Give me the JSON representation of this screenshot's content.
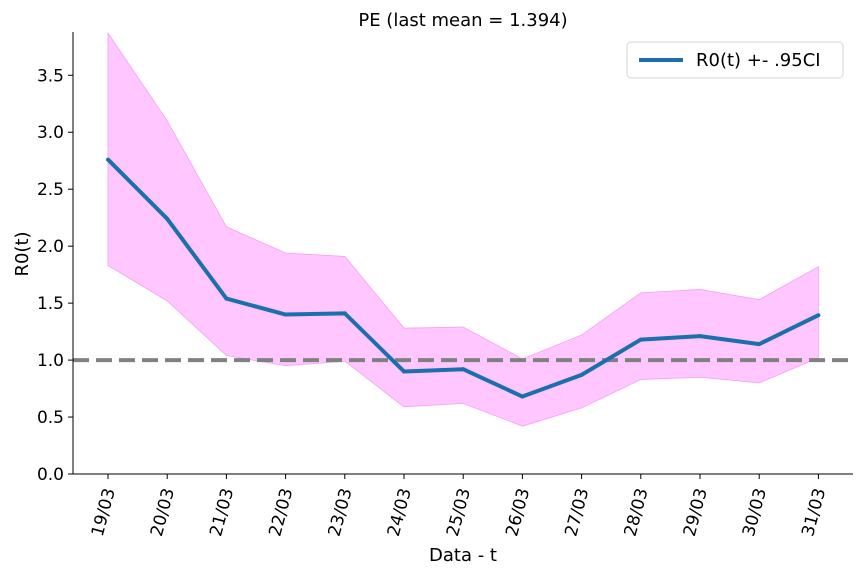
{
  "chart_data": {
    "type": "line",
    "title": "PE (last mean = 1.394)",
    "xlabel": "Data - t",
    "ylabel": "R0(t)",
    "x": [
      "19/03",
      "20/03",
      "21/03",
      "22/03",
      "23/03",
      "24/03",
      "25/03",
      "26/03",
      "27/03",
      "28/03",
      "29/03",
      "30/03",
      "31/03"
    ],
    "series": [
      {
        "name": "R0(t) +- .95CI",
        "values": [
          2.76,
          2.24,
          1.54,
          1.4,
          1.41,
          0.9,
          0.92,
          0.68,
          0.87,
          1.18,
          1.21,
          1.14,
          1.394
        ],
        "lower": [
          1.83,
          1.52,
          1.04,
          0.95,
          0.99,
          0.59,
          0.62,
          0.42,
          0.58,
          0.83,
          0.85,
          0.8,
          1.02
        ],
        "upper": [
          3.87,
          3.1,
          2.17,
          1.94,
          1.91,
          1.28,
          1.29,
          1.01,
          1.22,
          1.59,
          1.62,
          1.53,
          1.82
        ],
        "color": "#1a6faf",
        "band_color": "#ffc6ff"
      }
    ],
    "reference_line": {
      "y": 1.0,
      "color": "#808080",
      "style": "dashed"
    },
    "yticks": [
      "0.0",
      "0.5",
      "1.0",
      "1.5",
      "2.0",
      "2.5",
      "3.0",
      "3.5"
    ],
    "ylim": [
      0,
      3.88
    ],
    "grid": false,
    "legend": "top-right"
  }
}
